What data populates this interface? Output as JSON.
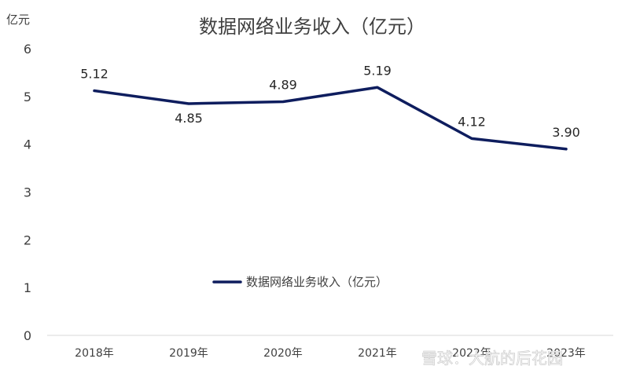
{
  "chart_data": {
    "type": "line",
    "title": "数据网络业务收入（亿元）",
    "ylabel": "亿元",
    "xlabel": "",
    "categories": [
      "2018年",
      "2019年",
      "2020年",
      "2021年",
      "2022年",
      "2023年"
    ],
    "series": [
      {
        "name": "数据网络业务收入（亿元）",
        "values": [
          5.12,
          4.85,
          4.89,
          5.19,
          4.12,
          3.9
        ],
        "labels": [
          "5.12",
          "4.85",
          "4.89",
          "5.19",
          "4.12",
          "3.90"
        ],
        "color": "#0e1d5e"
      }
    ],
    "yticks": [
      "0",
      "1",
      "2",
      "3",
      "4",
      "5",
      "6"
    ],
    "ylim": [
      0,
      6
    ],
    "grid": false,
    "legend": "center"
  },
  "watermark": "雪球：大航的后花园"
}
